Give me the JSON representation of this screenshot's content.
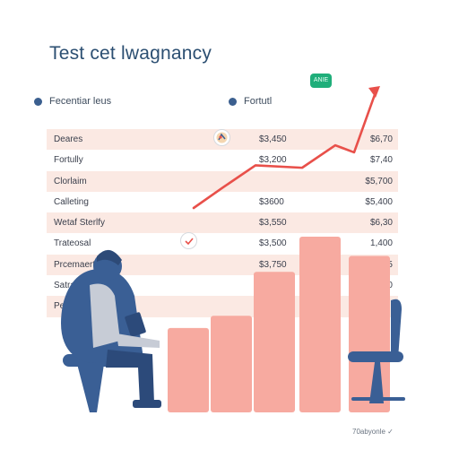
{
  "title": "Test cet lwagnancy",
  "legend": {
    "item1": "Fecentiar leus",
    "item2": "Fortutl"
  },
  "badge_text": "ANIE",
  "table": {
    "rows": [
      {
        "label": "Deares",
        "value1": "$3,450",
        "value2": "$6,70"
      },
      {
        "label": "Fortully",
        "value1": "$3,200",
        "value2": "$7,40"
      },
      {
        "label": "Clorlaim",
        "value1": "",
        "value2": "$5,700"
      },
      {
        "label": "Calleting",
        "value1": "$3600",
        "value2": "$5,400"
      },
      {
        "label": "Wetaf Sterlfy",
        "value1": "$3,550",
        "value2": "$6,30"
      },
      {
        "label": "Trateosal",
        "value1": "$3,500",
        "value2": "1,400"
      },
      {
        "label": "Prcemaerty",
        "value1": "$3,750",
        "value2": "15,355"
      },
      {
        "label": "Satrality",
        "value1": "",
        "value2": "$1,140"
      },
      {
        "label": "Pesle Cul",
        "value1": "",
        "value2": ""
      }
    ]
  },
  "footer": "70abyonle",
  "colors": {
    "title": "#2c4f72",
    "bar": "#f7aaa0",
    "line": "#e8504a",
    "row_shade": "#fbe9e3",
    "figure": "#3a5f95"
  },
  "chart_data": [
    {
      "type": "bar",
      "categories": [
        "",
        "",
        "",
        "",
        ""
      ],
      "values": [
        0.48,
        0.55,
        0.8,
        1.0,
        0.89
      ],
      "value_scale": "relative to tallest bar",
      "color": "#f7aaa0"
    },
    {
      "type": "line",
      "x": [
        0,
        1,
        2,
        3,
        4,
        5,
        6
      ],
      "values": [
        0.0,
        0.17,
        0.36,
        0.34,
        0.53,
        0.47,
        1.0
      ],
      "value_scale": "relative rise from start",
      "color": "#e8504a",
      "arrow_end": true
    }
  ]
}
